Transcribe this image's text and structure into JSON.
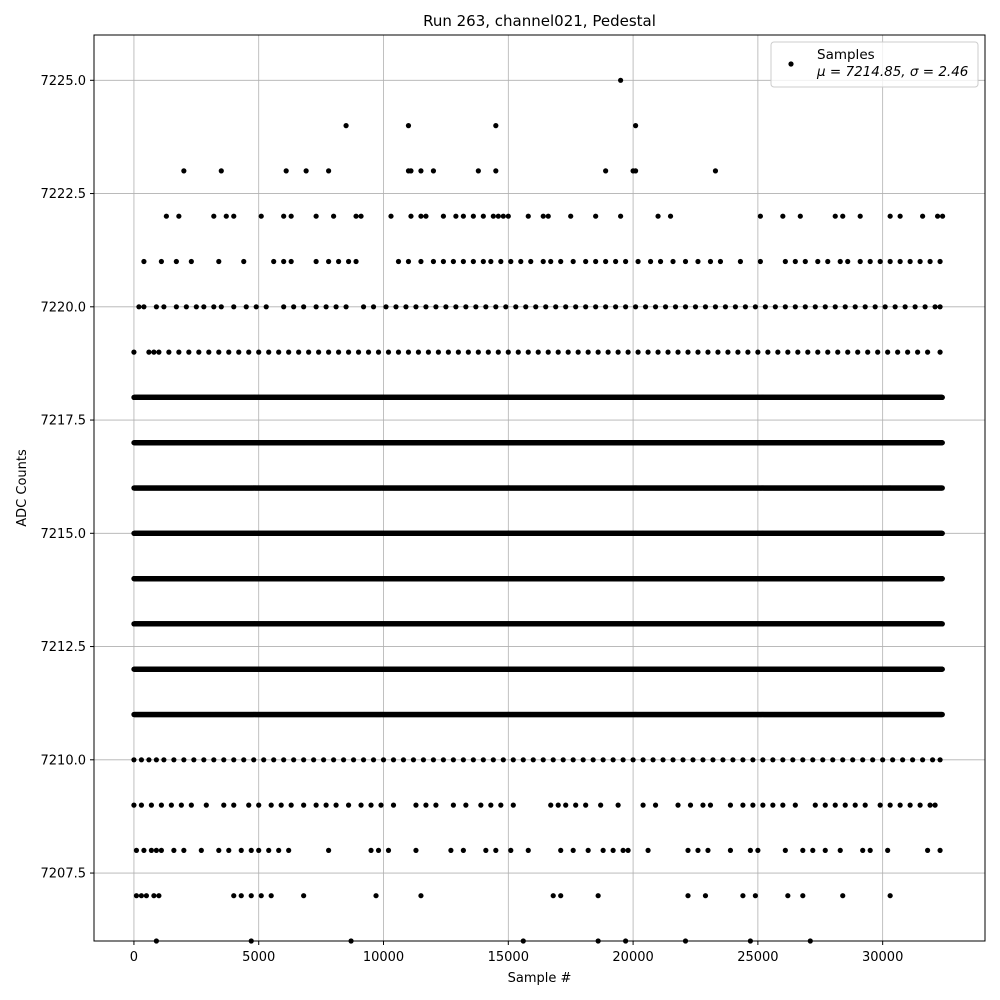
{
  "chart_data": {
    "type": "scatter",
    "title": "Run 263, channel021, Pedestal",
    "xlabel": "Sample #",
    "ylabel": "ADC Counts",
    "xlim": [
      -1600,
      34100
    ],
    "ylim": [
      7206.0,
      7226.0
    ],
    "xticks": [
      0,
      5000,
      10000,
      15000,
      20000,
      25000,
      30000
    ],
    "yticks": [
      7207.5,
      7210.0,
      7212.5,
      7215.0,
      7217.5,
      7220.0,
      7222.5,
      7225.0
    ],
    "grid": true,
    "legend_position": "top-right",
    "point_color": "#000000",
    "n_samples": 32400,
    "series": [
      {
        "name": "Samples",
        "legend_stats": "μ = 7214.85, σ = 2.46",
        "levels": [
          {
            "y": 7219,
            "x": [
              0,
              600,
              800,
              1000,
              1400,
              1800,
              2200,
              2600,
              3000,
              3400,
              3800,
              4200,
              4600,
              5000,
              5400,
              5800,
              6200,
              6600,
              7000,
              7400,
              7800,
              8200,
              8600,
              9000,
              9400,
              9800,
              10200,
              10600,
              11000,
              11400,
              11800,
              12200,
              12600,
              13000,
              13400,
              13800,
              14200,
              14600,
              15000,
              15400,
              15800,
              16200,
              16600,
              17000,
              17400,
              17800,
              18200,
              18600,
              19000,
              19400,
              19800,
              20200,
              20600,
              21000,
              21400,
              21800,
              22200,
              22600,
              23000,
              23400,
              23800,
              24200,
              24600,
              25000,
              25400,
              25800,
              26200,
              26600,
              27000,
              27400,
              27800,
              28200,
              28600,
              29000,
              29400,
              29800,
              30200,
              30600,
              31000,
              31400,
              31800,
              32300
            ]
          },
          {
            "y": 7220,
            "x": [
              200,
              400,
              900,
              1200,
              1700,
              2100,
              2500,
              2800,
              3200,
              3500,
              4000,
              4500,
              4900,
              5300,
              6000,
              6400,
              6800,
              7300,
              7700,
              8100,
              8500,
              9200,
              9600,
              10100,
              10500,
              10900,
              11300,
              11700,
              12100,
              12500,
              12900,
              13300,
              13700,
              14100,
              14500,
              14900,
              15300,
              15700,
              16100,
              16500,
              16900,
              17300,
              17700,
              18100,
              18500,
              18900,
              19300,
              19700,
              20100,
              20500,
              20900,
              21300,
              21700,
              22100,
              22500,
              22900,
              23300,
              23700,
              24100,
              24500,
              24900,
              25300,
              25700,
              26100,
              26500,
              26900,
              27300,
              27700,
              28100,
              28500,
              28900,
              29300,
              29700,
              30100,
              30500,
              30900,
              31300,
              31700,
              32100,
              32300
            ]
          },
          {
            "y": 7221,
            "x": [
              400,
              1100,
              1700,
              2300,
              3400,
              4400,
              5600,
              6000,
              6300,
              7300,
              7800,
              8200,
              8600,
              8900,
              10600,
              11000,
              11500,
              12000,
              12400,
              12800,
              13200,
              13600,
              14000,
              14300,
              14700,
              15100,
              15500,
              15900,
              16400,
              16700,
              17100,
              17600,
              18100,
              18500,
              18900,
              19300,
              19700,
              20200,
              20700,
              21100,
              21600,
              22100,
              22600,
              23100,
              23500,
              24300,
              25100,
              26100,
              26500,
              26900,
              27400,
              27800,
              28300,
              28600,
              29100,
              29500,
              29900,
              30300,
              30700,
              31100,
              31500,
              31900,
              32300
            ]
          },
          {
            "y": 7222,
            "x": [
              1300,
              1800,
              3200,
              3700,
              4000,
              5100,
              6000,
              6300,
              7300,
              8000,
              8900,
              9100,
              10300,
              11100,
              11500,
              11700,
              12400,
              12900,
              13200,
              13600,
              14000,
              14400,
              14600,
              14800,
              15000,
              15800,
              16400,
              16600,
              17500,
              18500,
              19500,
              21000,
              21500,
              25100,
              26000,
              26700,
              28100,
              28400,
              29100,
              30300,
              30700,
              31600,
              32200,
              32400
            ]
          },
          {
            "y": 7223,
            "x": [
              2000,
              3500,
              6100,
              6900,
              7800,
              11000,
              11100,
              11500,
              12000,
              13800,
              14500,
              18900,
              20000,
              20100,
              23300
            ]
          },
          {
            "y": 7224,
            "x": [
              8500,
              11000,
              14500,
              20100
            ]
          },
          {
            "y": 7225,
            "x": [
              19500
            ]
          },
          {
            "y": 7210,
            "x": [
              0,
              300,
              600,
              900,
              1200,
              1600,
              2000,
              2400,
              2800,
              3200,
              3600,
              4000,
              4400,
              4800,
              5200,
              5600,
              6000,
              6400,
              6800,
              7200,
              7600,
              8000,
              8400,
              8800,
              9200,
              9600,
              10000,
              10400,
              10800,
              11200,
              11600,
              12000,
              12400,
              12800,
              13200,
              13600,
              14000,
              14400,
              14800,
              15200,
              15600,
              16000,
              16400,
              16800,
              17200,
              17600,
              18000,
              18400,
              18800,
              19200,
              19600,
              20000,
              20400,
              20800,
              21200,
              21600,
              22000,
              22400,
              22800,
              23200,
              23600,
              24000,
              24400,
              24800,
              25200,
              25600,
              26000,
              26400,
              26800,
              27200,
              27600,
              28000,
              28400,
              28800,
              29200,
              29600,
              30000,
              30400,
              30800,
              31200,
              31600,
              32000,
              32300
            ]
          },
          {
            "y": 7209,
            "x": [
              0,
              300,
              700,
              1100,
              1500,
              1900,
              2300,
              2900,
              3600,
              4000,
              4600,
              5000,
              5500,
              5900,
              6300,
              6800,
              7300,
              7700,
              8100,
              8600,
              9100,
              9500,
              9900,
              10400,
              11300,
              11700,
              12100,
              12800,
              13300,
              13900,
              14300,
              14700,
              15200,
              16700,
              17000,
              17300,
              17700,
              18100,
              18700,
              19400,
              20400,
              20900,
              21800,
              22300,
              22800,
              23100,
              23900,
              24400,
              24800,
              25200,
              25600,
              26000,
              26500,
              27300,
              27700,
              28100,
              28500,
              28900,
              29300,
              29900,
              30300,
              30700,
              31100,
              31500,
              31900,
              32100
            ]
          },
          {
            "y": 7208,
            "x": [
              100,
              400,
              700,
              900,
              1100,
              1600,
              2000,
              2700,
              3400,
              3800,
              4300,
              4700,
              5000,
              5400,
              5800,
              6200,
              7800,
              9500,
              9800,
              10200,
              11300,
              12700,
              13200,
              14100,
              14500,
              15100,
              15800,
              17100,
              17600,
              18200,
              18800,
              19200,
              19600,
              19800,
              20600,
              22200,
              22600,
              23000,
              23900,
              24700,
              25000,
              26100,
              26800,
              27200,
              27700,
              28300,
              29200,
              29500,
              30200,
              31800,
              32300
            ]
          },
          {
            "y": 7207,
            "x": [
              100,
              300,
              500,
              800,
              1000,
              4000,
              4300,
              4700,
              5100,
              5500,
              6800,
              9700,
              11500,
              16800,
              17100,
              18600,
              22200,
              22900,
              24400,
              24900,
              26200,
              26800,
              28400,
              30300
            ]
          },
          {
            "y": 7206,
            "x": [
              900,
              4700,
              8700,
              15600,
              18600,
              19700,
              22100,
              24700,
              27100
            ]
          }
        ]
      }
    ]
  }
}
